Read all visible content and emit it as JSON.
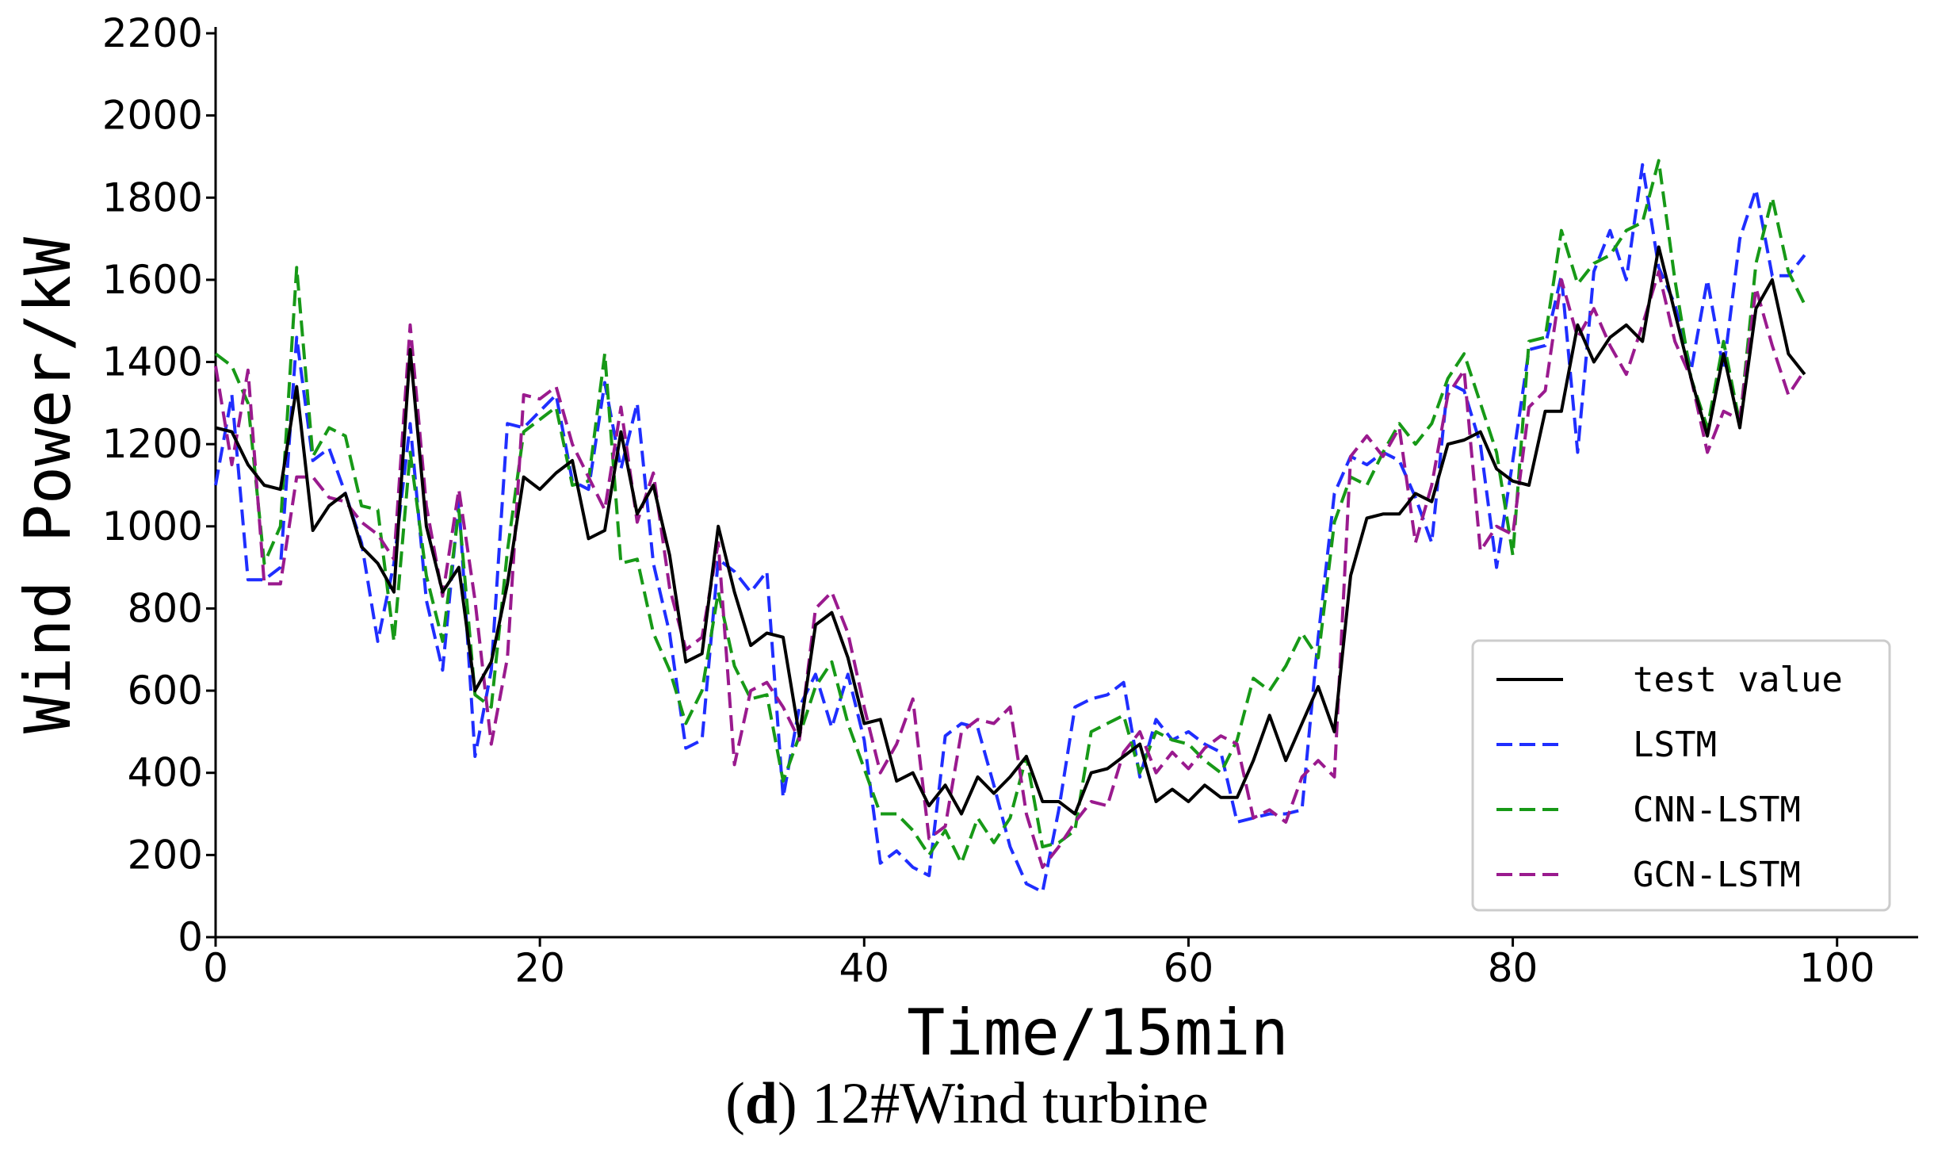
{
  "caption": {
    "letter": "d",
    "text": "12#Wind turbine"
  },
  "chart_data": {
    "type": "line",
    "xlabel": "Time/15min",
    "ylabel": "Wind Power/kW",
    "xlim": [
      0,
      105
    ],
    "ylim": [
      0,
      2200
    ],
    "xticks": [
      0,
      20,
      40,
      60,
      80,
      100
    ],
    "yticks": [
      0,
      200,
      400,
      600,
      800,
      1000,
      1200,
      1400,
      1600,
      1800,
      2000,
      2200
    ],
    "grid": false,
    "legend_position": "lower-right",
    "series": [
      {
        "name": "test value",
        "color": "#000000",
        "dash": "solid",
        "values": [
          1240,
          1230,
          1150,
          1100,
          1090,
          1340,
          990,
          1050,
          1080,
          950,
          910,
          840,
          1430,
          1000,
          840,
          900,
          600,
          670,
          860,
          1120,
          1090,
          1130,
          1160,
          970,
          990,
          1230,
          1030,
          1100,
          930,
          670,
          690,
          1000,
          840,
          710,
          740,
          730,
          490,
          760,
          790,
          680,
          520,
          530,
          380,
          400,
          320,
          370,
          300,
          390,
          350,
          390,
          440,
          330,
          330,
          300,
          400,
          410,
          440,
          470,
          330,
          360,
          330,
          370,
          340,
          340,
          430,
          540,
          430,
          520,
          610,
          500,
          880,
          1020,
          1030,
          1030,
          1080,
          1060,
          1200,
          1210,
          1230,
          1140,
          1110,
          1100,
          1280,
          1280,
          1490,
          1400,
          1460,
          1490,
          1450,
          1680,
          1520,
          1360,
          1220,
          1420,
          1240,
          1530,
          1600,
          1420,
          1370
        ]
      },
      {
        "name": "LSTM",
        "color": "#1f2eff",
        "dash": "dashed",
        "values": [
          1100,
          1320,
          870,
          870,
          900,
          1460,
          1160,
          1190,
          1080,
          960,
          720,
          910,
          1250,
          820,
          650,
          1060,
          440,
          650,
          1250,
          1240,
          1280,
          1320,
          1110,
          1090,
          1350,
          1140,
          1300,
          910,
          740,
          460,
          480,
          920,
          890,
          840,
          890,
          340,
          560,
          640,
          510,
          640,
          480,
          180,
          210,
          170,
          150,
          490,
          520,
          510,
          370,
          220,
          130,
          110,
          310,
          560,
          580,
          590,
          620,
          390,
          530,
          480,
          500,
          470,
          450,
          280,
          290,
          300,
          300,
          310,
          730,
          1080,
          1170,
          1150,
          1180,
          1160,
          1070,
          960,
          1350,
          1330,
          1200,
          900,
          1160,
          1430,
          1440,
          1610,
          1180,
          1620,
          1720,
          1600,
          1880,
          1630,
          1540,
          1380,
          1600,
          1380,
          1700,
          1820,
          1610,
          1610,
          1660
        ]
      },
      {
        "name": "CNN-LSTM",
        "color": "#179917",
        "dash": "dashed",
        "values": [
          1420,
          1390,
          1300,
          910,
          1000,
          1630,
          1170,
          1240,
          1220,
          1050,
          1040,
          720,
          1180,
          880,
          720,
          1040,
          590,
          560,
          940,
          1230,
          1260,
          1290,
          1100,
          1110,
          1420,
          910,
          920,
          740,
          650,
          520,
          600,
          840,
          660,
          580,
          590,
          380,
          490,
          610,
          670,
          520,
          410,
          300,
          300,
          260,
          200,
          260,
          180,
          290,
          230,
          290,
          440,
          220,
          230,
          260,
          500,
          520,
          540,
          400,
          500,
          480,
          470,
          430,
          400,
          480,
          630,
          600,
          660,
          740,
          680,
          1010,
          1120,
          1100,
          1180,
          1250,
          1200,
          1250,
          1360,
          1420,
          1300,
          1180,
          930,
          1450,
          1460,
          1720,
          1590,
          1640,
          1660,
          1720,
          1740,
          1890,
          1600,
          1360,
          1240,
          1450,
          1250,
          1640,
          1800,
          1620,
          1540
        ]
      },
      {
        "name": "GCN-LSTM",
        "color": "#9a1a8e",
        "dash": "dashed",
        "values": [
          1390,
          1150,
          1380,
          860,
          860,
          1120,
          1120,
          1070,
          1060,
          1010,
          980,
          920,
          1490,
          1050,
          830,
          1090,
          820,
          470,
          680,
          1320,
          1310,
          1340,
          1200,
          1120,
          1040,
          1290,
          1010,
          1130,
          850,
          700,
          730,
          960,
          420,
          600,
          620,
          560,
          480,
          800,
          840,
          740,
          560,
          400,
          470,
          580,
          240,
          270,
          500,
          530,
          520,
          560,
          300,
          170,
          220,
          280,
          330,
          320,
          450,
          500,
          400,
          450,
          410,
          460,
          490,
          470,
          290,
          310,
          280,
          390,
          430,
          390,
          1170,
          1220,
          1170,
          1240,
          960,
          1100,
          1320,
          1380,
          940,
          1000,
          980,
          1290,
          1330,
          1600,
          1460,
          1530,
          1440,
          1370,
          1490,
          1620,
          1450,
          1360,
          1180,
          1280,
          1260,
          1580,
          1440,
          1320,
          1380
        ]
      }
    ]
  }
}
